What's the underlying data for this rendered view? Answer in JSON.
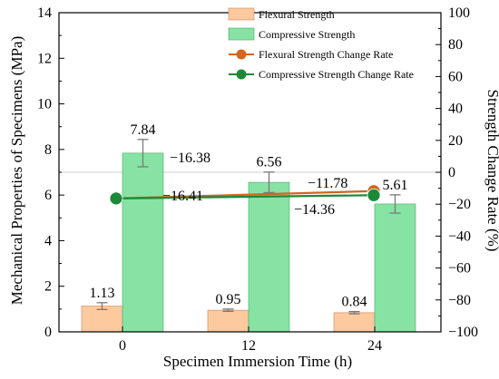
{
  "chart_data": {
    "type": "bar",
    "xlabel": "Specimen Immersion Time (h)",
    "ylabel": "Mechanical Properties of Specimens (MPa)",
    "y2label": "Strength Change Rate (%)",
    "categories": [
      "0",
      "12",
      "24"
    ],
    "ylim": [
      0,
      14
    ],
    "yticks": [
      "0",
      "2",
      "4",
      "6",
      "8",
      "10",
      "12",
      "14"
    ],
    "y2lim": [
      -100,
      100
    ],
    "y2ticks": [
      "−100",
      "−80",
      "−60",
      "−40",
      "−20",
      "0",
      "20",
      "40",
      "60",
      "80",
      "100"
    ],
    "grid": false,
    "legend_position": "top-center",
    "series": [
      {
        "name": "Flexural Strength",
        "kind": "bar",
        "axis": "left",
        "values": [
          1.13,
          0.95,
          0.84
        ],
        "errors": [
          0.15,
          0.05,
          0.05
        ],
        "labels": [
          "1.13",
          "0.95",
          "0.84"
        ],
        "color": "#fdc99e"
      },
      {
        "name": "Compressive Strength",
        "kind": "bar",
        "axis": "left",
        "values": [
          7.84,
          6.56,
          5.61
        ],
        "errors": [
          0.6,
          0.45,
          0.4
        ],
        "labels": [
          "7.84",
          "6.56",
          "5.61"
        ],
        "color": "#86e3a4"
      },
      {
        "name": "Flexural Strength Change Rate",
        "kind": "line",
        "axis": "right",
        "x": [
          "0",
          "24"
        ],
        "values": [
          -16.38,
          -11.78
        ],
        "labels": [
          "−16.38",
          "−11.78"
        ],
        "color": "#d4641e"
      },
      {
        "name": "Compressive Strength Change Rate",
        "kind": "line",
        "axis": "right",
        "x": [
          "0",
          "24"
        ],
        "values": [
          -16.41,
          -14.36
        ],
        "labels": [
          "−16.41",
          "−14.36"
        ],
        "color": "#1a8a37"
      }
    ]
  }
}
